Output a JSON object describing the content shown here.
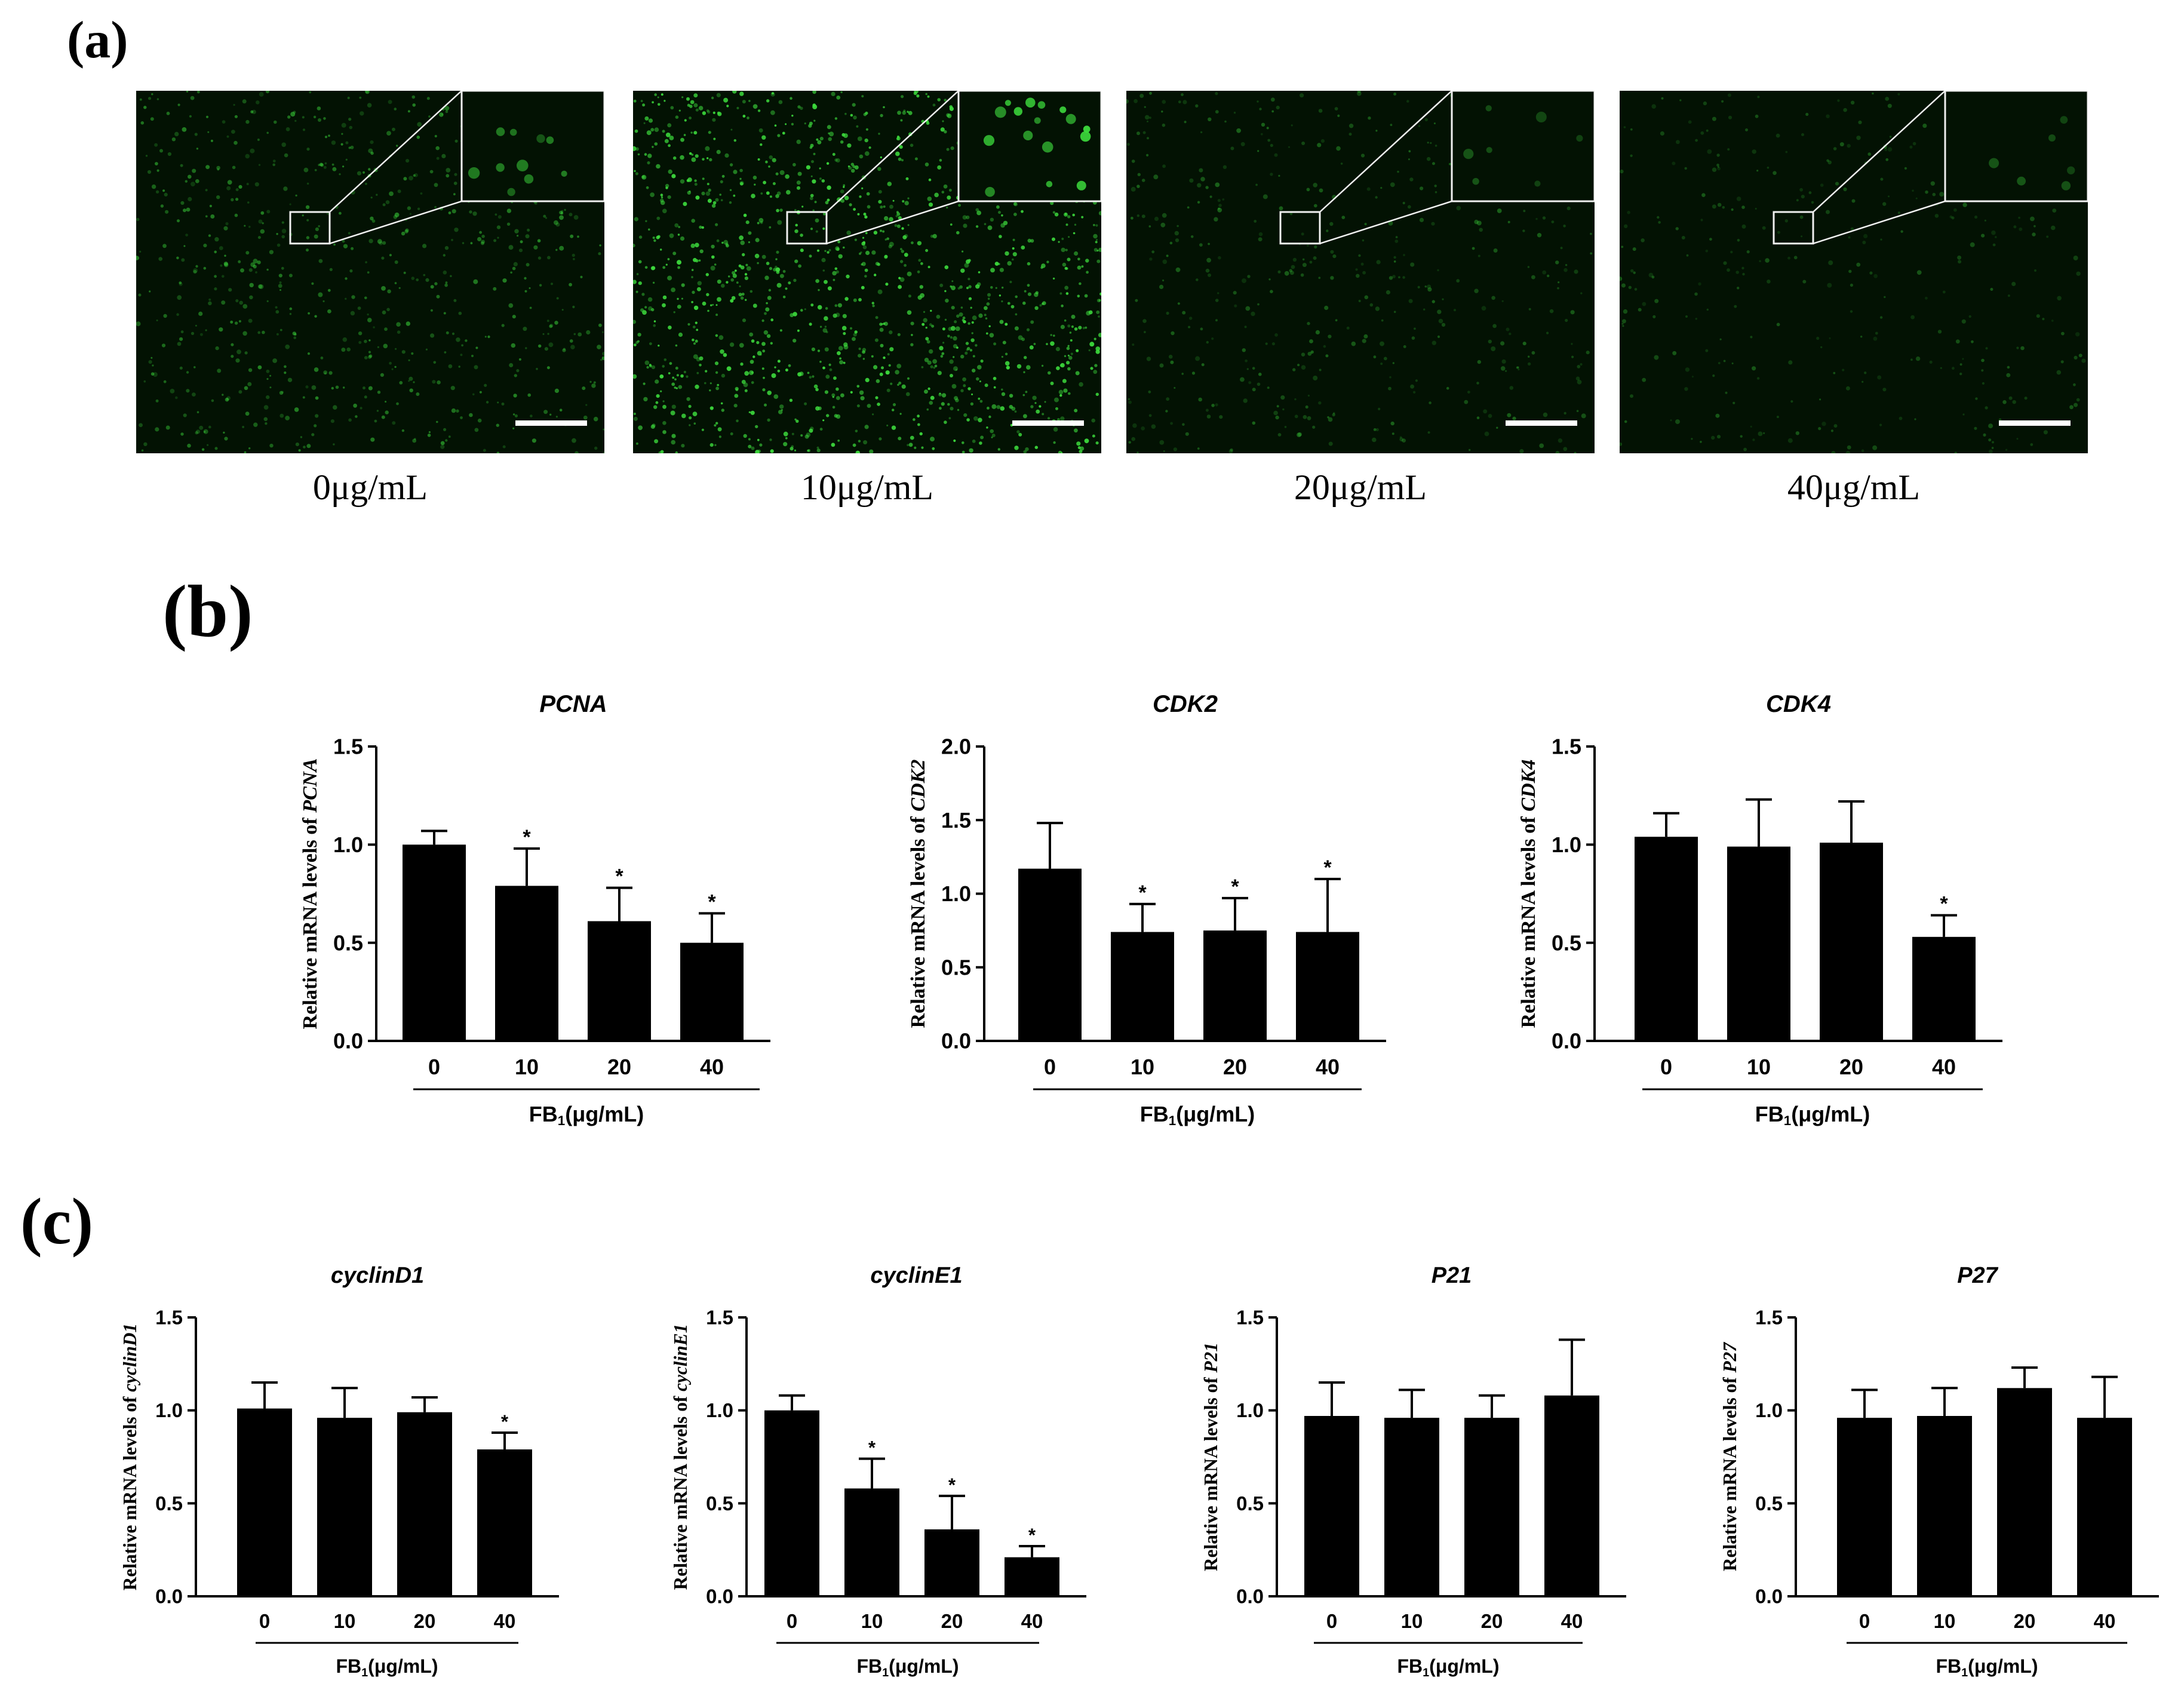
{
  "panel_labels": {
    "a": "(a)",
    "b": "(b)",
    "c": "(c)"
  },
  "micrographs": [
    {
      "caption": "0μg/mL",
      "density": 0.55,
      "brightness": 0.55
    },
    {
      "caption": "10μg/mL",
      "density": 1.0,
      "brightness": 0.95
    },
    {
      "caption": "20μg/mL",
      "density": 0.35,
      "brightness": 0.4
    },
    {
      "caption": "40μg/mL",
      "density": 0.25,
      "brightness": 0.35
    }
  ],
  "colors": {
    "bar": "#000000",
    "fluorescence": "#3ddc3d",
    "micro_bg": "#031203",
    "frame": "#f0f0f0"
  },
  "chart_data": [
    {
      "type": "bar",
      "title": "PCNA",
      "ylabel_prefix": "Relative mRNA levels of ",
      "ylabel_gene": "PCNA",
      "xlabel_main": "FB",
      "xlabel_sub": "1",
      "xlabel_unit": "(μg/mL)",
      "categories": [
        "0",
        "10",
        "20",
        "40"
      ],
      "values": [
        1.0,
        0.79,
        0.61,
        0.5
      ],
      "errors": [
        0.07,
        0.19,
        0.17,
        0.15
      ],
      "significant": [
        false,
        true,
        true,
        true
      ],
      "star": "*",
      "ylim": [
        0,
        1.5
      ],
      "yticks": [
        "0.0",
        "0.5",
        "1.0",
        "1.5"
      ]
    },
    {
      "type": "bar",
      "title": "CDK2",
      "ylabel_prefix": "Relative mRNA levels of ",
      "ylabel_gene": "CDK2",
      "xlabel_main": "FB",
      "xlabel_sub": "1",
      "xlabel_unit": "(μg/mL)",
      "categories": [
        "0",
        "10",
        "20",
        "40"
      ],
      "values": [
        1.17,
        0.74,
        0.75,
        0.74
      ],
      "errors": [
        0.31,
        0.19,
        0.22,
        0.36
      ],
      "significant": [
        false,
        true,
        true,
        true
      ],
      "star": "*",
      "ylim": [
        0,
        2.0
      ],
      "yticks": [
        "0.0",
        "0.5",
        "1.0",
        "1.5",
        "2.0"
      ]
    },
    {
      "type": "bar",
      "title": "CDK4",
      "ylabel_prefix": "Relative mRNA levels of ",
      "ylabel_gene": "CDK4",
      "xlabel_main": "FB",
      "xlabel_sub": "1",
      "xlabel_unit": "(μg/mL)",
      "categories": [
        "0",
        "10",
        "20",
        "40"
      ],
      "values": [
        1.04,
        0.99,
        1.01,
        0.53
      ],
      "errors": [
        0.12,
        0.24,
        0.21,
        0.11
      ],
      "significant": [
        false,
        false,
        false,
        true
      ],
      "star": "*",
      "ylim": [
        0,
        1.5
      ],
      "yticks": [
        "0.0",
        "0.5",
        "1.0",
        "1.5"
      ]
    },
    {
      "type": "bar",
      "title": "cyclinD1",
      "ylabel_prefix": "Relative mRNA levels of ",
      "ylabel_gene": "cyclinD1",
      "xlabel_main": "FB",
      "xlabel_sub": "1",
      "xlabel_unit": "(μg/mL)",
      "categories": [
        "0",
        "10",
        "20",
        "40"
      ],
      "values": [
        1.01,
        0.96,
        0.99,
        0.79
      ],
      "errors": [
        0.14,
        0.16,
        0.08,
        0.09
      ],
      "significant": [
        false,
        false,
        false,
        true
      ],
      "star": "*",
      "ylim": [
        0,
        1.5
      ],
      "yticks": [
        "0.0",
        "0.5",
        "1.0",
        "1.5"
      ]
    },
    {
      "type": "bar",
      "title": "cyclinE1",
      "ylabel_prefix": "Relative mRNA levels of ",
      "ylabel_gene": "cyclinE1",
      "xlabel_main": "FB",
      "xlabel_sub": "1",
      "xlabel_unit": "(μg/mL)",
      "categories": [
        "0",
        "10",
        "20",
        "40"
      ],
      "values": [
        1.0,
        0.58,
        0.36,
        0.21
      ],
      "errors": [
        0.08,
        0.16,
        0.18,
        0.06
      ],
      "significant": [
        false,
        true,
        true,
        true
      ],
      "star": "*",
      "ylim": [
        0,
        1.5
      ],
      "yticks": [
        "0.0",
        "0.5",
        "1.0",
        "1.5"
      ]
    },
    {
      "type": "bar",
      "title": "P21",
      "ylabel_prefix": "Relative mRNA levels of ",
      "ylabel_gene": "P21",
      "xlabel_main": "FB",
      "xlabel_sub": "1",
      "xlabel_unit": "(μg/mL)",
      "categories": [
        "0",
        "10",
        "20",
        "40"
      ],
      "values": [
        0.97,
        0.96,
        0.96,
        1.08
      ],
      "errors": [
        0.18,
        0.15,
        0.12,
        0.3
      ],
      "significant": [
        false,
        false,
        false,
        false
      ],
      "star": "*",
      "ylim": [
        0,
        1.5
      ],
      "yticks": [
        "0.0",
        "0.5",
        "1.0",
        "1.5"
      ]
    },
    {
      "type": "bar",
      "title": "P27",
      "ylabel_prefix": "Relative mRNA levels of ",
      "ylabel_gene": "P27",
      "xlabel_main": "FB",
      "xlabel_sub": "1",
      "xlabel_unit": "(μg/mL)",
      "categories": [
        "0",
        "10",
        "20",
        "40"
      ],
      "values": [
        0.96,
        0.97,
        1.12,
        0.96
      ],
      "errors": [
        0.15,
        0.15,
        0.11,
        0.22
      ],
      "significant": [
        false,
        false,
        false,
        false
      ],
      "star": "*",
      "ylim": [
        0,
        1.5
      ],
      "yticks": [
        "0.0",
        "0.5",
        "1.0",
        "1.5"
      ]
    }
  ]
}
